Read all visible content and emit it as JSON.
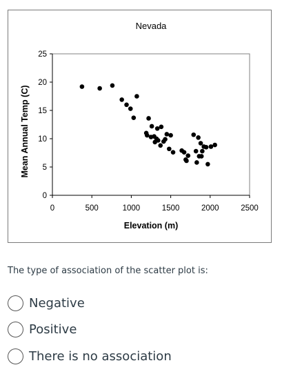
{
  "chart_data": {
    "type": "scatter",
    "title": "Nevada",
    "xlabel": "Elevation (m)",
    "ylabel": "Mean Annual Temp (C)",
    "xlim": [
      0,
      2500
    ],
    "ylim": [
      0,
      25
    ],
    "x_ticks": [
      "0",
      "500",
      "1000",
      "1500",
      "2000",
      "2500"
    ],
    "y_ticks": [
      "0",
      "5",
      "10",
      "15",
      "20",
      "25"
    ],
    "grid": false,
    "legend": "none",
    "marker_color": "#000000",
    "points": [
      {
        "x": 375,
        "y": 19.2
      },
      {
        "x": 600,
        "y": 18.9
      },
      {
        "x": 760,
        "y": 19.4
      },
      {
        "x": 880,
        "y": 16.9
      },
      {
        "x": 940,
        "y": 16.0
      },
      {
        "x": 990,
        "y": 15.3
      },
      {
        "x": 1030,
        "y": 13.7
      },
      {
        "x": 1070,
        "y": 17.5
      },
      {
        "x": 1190,
        "y": 11.0
      },
      {
        "x": 1200,
        "y": 10.6
      },
      {
        "x": 1220,
        "y": 13.6
      },
      {
        "x": 1250,
        "y": 10.3
      },
      {
        "x": 1260,
        "y": 12.2
      },
      {
        "x": 1290,
        "y": 10.4
      },
      {
        "x": 1300,
        "y": 9.4
      },
      {
        "x": 1320,
        "y": 10.0
      },
      {
        "x": 1330,
        "y": 11.8
      },
      {
        "x": 1340,
        "y": 9.7
      },
      {
        "x": 1370,
        "y": 8.8
      },
      {
        "x": 1380,
        "y": 12.1
      },
      {
        "x": 1410,
        "y": 9.5
      },
      {
        "x": 1430,
        "y": 9.9
      },
      {
        "x": 1450,
        "y": 10.8
      },
      {
        "x": 1480,
        "y": 8.2
      },
      {
        "x": 1500,
        "y": 10.6
      },
      {
        "x": 1530,
        "y": 7.6
      },
      {
        "x": 1640,
        "y": 7.9
      },
      {
        "x": 1670,
        "y": 7.6
      },
      {
        "x": 1690,
        "y": 6.3
      },
      {
        "x": 1700,
        "y": 6.1
      },
      {
        "x": 1720,
        "y": 7.0
      },
      {
        "x": 1790,
        "y": 10.7
      },
      {
        "x": 1820,
        "y": 7.8
      },
      {
        "x": 1830,
        "y": 5.8
      },
      {
        "x": 1850,
        "y": 10.2
      },
      {
        "x": 1860,
        "y": 6.9
      },
      {
        "x": 1880,
        "y": 9.2
      },
      {
        "x": 1890,
        "y": 6.9
      },
      {
        "x": 1900,
        "y": 7.8
      },
      {
        "x": 1920,
        "y": 8.6
      },
      {
        "x": 1950,
        "y": 8.5
      },
      {
        "x": 1970,
        "y": 5.5
      },
      {
        "x": 2010,
        "y": 8.6
      },
      {
        "x": 2060,
        "y": 8.9
      }
    ]
  },
  "question": {
    "text": "The type of association of the scatter plot is:",
    "options": [
      {
        "label": "Negative",
        "selected": false
      },
      {
        "label": "Positive",
        "selected": false
      },
      {
        "label": "There is no association",
        "selected": false
      }
    ]
  }
}
